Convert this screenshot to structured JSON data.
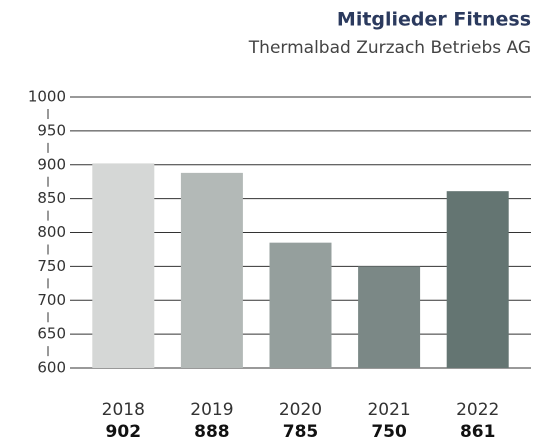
{
  "chart_data": {
    "type": "bar",
    "title": "Mitglieder Fitness",
    "subtitle": "Thermalbad Zurzach Betriebs AG",
    "categories": [
      "2018",
      "2019",
      "2020",
      "2021",
      "2022"
    ],
    "values": [
      902,
      888,
      785,
      750,
      861
    ],
    "colors": [
      "#d5d7d6",
      "#b3b9b7",
      "#959f9d",
      "#7b8886",
      "#647572"
    ],
    "ylim": [
      600,
      1000
    ],
    "yticks": [
      600,
      650,
      700,
      750,
      800,
      850,
      900,
      950,
      1000
    ],
    "grid": true
  }
}
